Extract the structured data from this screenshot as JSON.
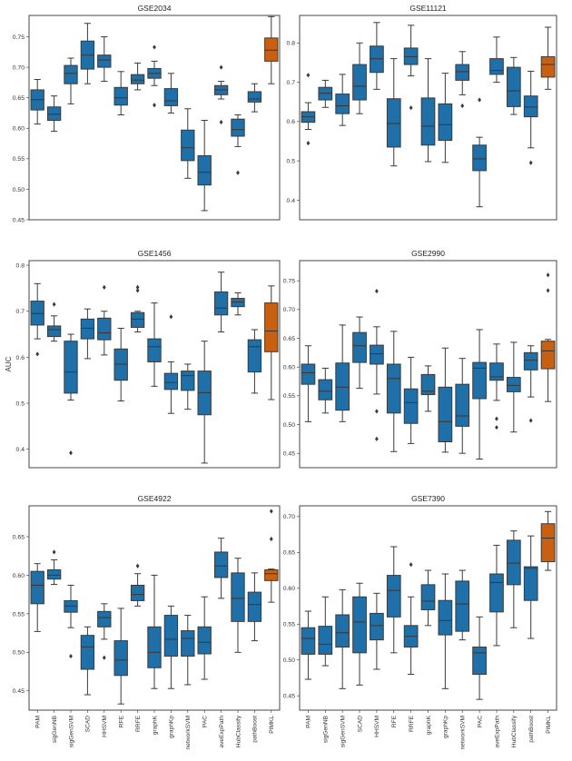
{
  "colors": {
    "box": "#1f6fa8",
    "highlight": "#c9600f",
    "line": "#3a3a3a",
    "frame": "#333333"
  },
  "shared": {
    "ylabel": "AUC",
    "categories": [
      "PAM",
      "sigGenNB",
      "sigGenSVM",
      "SCAD",
      "HHSVM",
      "RFE",
      "RRFE",
      "graphK",
      "graphKp",
      "networkSVM",
      "PAC",
      "aveExpPath",
      "HubClassify",
      "pathBoost",
      "PIMKL"
    ]
  },
  "chart_data": [
    {
      "type": "box",
      "title": "GSE2034",
      "ylim": [
        0.45,
        0.785
      ],
      "yticks": [
        "0.45",
        "0.50",
        "0.55",
        "0.60",
        "0.65",
        "0.70",
        "0.75"
      ],
      "boxes": [
        {
          "q1": 0.63,
          "med": 0.647,
          "q3": 0.663,
          "wlo": 0.607,
          "whi": 0.68,
          "fliers": []
        },
        {
          "q1": 0.613,
          "med": 0.623,
          "q3": 0.635,
          "wlo": 0.595,
          "whi": 0.653,
          "fliers": []
        },
        {
          "q1": 0.673,
          "med": 0.69,
          "q3": 0.703,
          "wlo": 0.64,
          "whi": 0.715,
          "fliers": []
        },
        {
          "q1": 0.697,
          "med": 0.72,
          "q3": 0.743,
          "wlo": 0.673,
          "whi": 0.772,
          "fliers": []
        },
        {
          "q1": 0.7,
          "med": 0.712,
          "q3": 0.72,
          "wlo": 0.677,
          "whi": 0.75,
          "fliers": []
        },
        {
          "q1": 0.638,
          "med": 0.65,
          "q3": 0.667,
          "wlo": 0.622,
          "whi": 0.693,
          "fliers": []
        },
        {
          "q1": 0.673,
          "med": 0.679,
          "q3": 0.688,
          "wlo": 0.663,
          "whi": 0.707,
          "fliers": []
        },
        {
          "q1": 0.682,
          "med": 0.69,
          "q3": 0.698,
          "wlo": 0.67,
          "whi": 0.71,
          "fliers": [
            0.733,
            0.638
          ]
        },
        {
          "q1": 0.637,
          "med": 0.645,
          "q3": 0.665,
          "wlo": 0.625,
          "whi": 0.69,
          "fliers": []
        },
        {
          "q1": 0.547,
          "med": 0.568,
          "q3": 0.597,
          "wlo": 0.518,
          "whi": 0.632,
          "fliers": []
        },
        {
          "q1": 0.507,
          "med": 0.528,
          "q3": 0.555,
          "wlo": 0.465,
          "whi": 0.613,
          "fliers": []
        },
        {
          "q1": 0.655,
          "med": 0.663,
          "q3": 0.67,
          "wlo": 0.648,
          "whi": 0.677,
          "fliers": [
            0.7,
            0.61
          ]
        },
        {
          "q1": 0.587,
          "med": 0.598,
          "q3": 0.615,
          "wlo": 0.57,
          "whi": 0.622,
          "fliers": [
            0.527
          ]
        },
        {
          "q1": 0.643,
          "med": 0.648,
          "q3": 0.66,
          "wlo": 0.627,
          "whi": 0.673,
          "fliers": []
        },
        {
          "q1": 0.71,
          "med": 0.728,
          "q3": 0.748,
          "wlo": 0.673,
          "whi": 0.783,
          "fliers": [],
          "highlight": true
        }
      ]
    },
    {
      "type": "box",
      "title": "GSE11121",
      "ylim": [
        0.35,
        0.87
      ],
      "yticks": [
        "0.4",
        "0.5",
        "0.6",
        "0.7",
        "0.8"
      ],
      "boxes": [
        {
          "q1": 0.598,
          "med": 0.612,
          "q3": 0.625,
          "wlo": 0.58,
          "whi": 0.648,
          "fliers": [
            0.718,
            0.545
          ]
        },
        {
          "q1": 0.655,
          "med": 0.672,
          "q3": 0.687,
          "wlo": 0.636,
          "whi": 0.705,
          "fliers": []
        },
        {
          "q1": 0.62,
          "med": 0.64,
          "q3": 0.67,
          "wlo": 0.59,
          "whi": 0.72,
          "fliers": []
        },
        {
          "q1": 0.655,
          "med": 0.69,
          "q3": 0.745,
          "wlo": 0.62,
          "whi": 0.8,
          "fliers": []
        },
        {
          "q1": 0.725,
          "med": 0.76,
          "q3": 0.792,
          "wlo": 0.682,
          "whi": 0.852,
          "fliers": []
        },
        {
          "q1": 0.535,
          "med": 0.595,
          "q3": 0.658,
          "wlo": 0.487,
          "whi": 0.76,
          "fliers": []
        },
        {
          "q1": 0.745,
          "med": 0.765,
          "q3": 0.787,
          "wlo": 0.716,
          "whi": 0.845,
          "fliers": [
            0.635
          ]
        },
        {
          "q1": 0.54,
          "med": 0.588,
          "q3": 0.66,
          "wlo": 0.498,
          "whi": 0.76,
          "fliers": []
        },
        {
          "q1": 0.552,
          "med": 0.592,
          "q3": 0.645,
          "wlo": 0.496,
          "whi": 0.723,
          "fliers": []
        },
        {
          "q1": 0.705,
          "med": 0.727,
          "q3": 0.745,
          "wlo": 0.668,
          "whi": 0.778,
          "fliers": [
            0.64
          ]
        },
        {
          "q1": 0.475,
          "med": 0.505,
          "q3": 0.54,
          "wlo": 0.383,
          "whi": 0.56,
          "fliers": [
            0.655
          ]
        },
        {
          "q1": 0.72,
          "med": 0.73,
          "q3": 0.76,
          "wlo": 0.7,
          "whi": 0.815,
          "fliers": []
        },
        {
          "q1": 0.638,
          "med": 0.678,
          "q3": 0.738,
          "wlo": 0.618,
          "whi": 0.763,
          "fliers": []
        },
        {
          "q1": 0.612,
          "med": 0.637,
          "q3": 0.665,
          "wlo": 0.533,
          "whi": 0.728,
          "fliers": [
            0.495
          ]
        },
        {
          "q1": 0.713,
          "med": 0.745,
          "q3": 0.765,
          "wlo": 0.682,
          "whi": 0.84,
          "fliers": [],
          "highlight": true
        }
      ]
    },
    {
      "type": "box",
      "title": "GSE1456",
      "ylim": [
        0.36,
        0.81
      ],
      "yticks": [
        "0.4",
        "0.5",
        "0.6",
        "0.7",
        "0.8"
      ],
      "boxes": [
        {
          "q1": 0.67,
          "med": 0.695,
          "q3": 0.722,
          "wlo": 0.64,
          "whi": 0.76,
          "fliers": [
            0.607
          ]
        },
        {
          "q1": 0.645,
          "med": 0.66,
          "q3": 0.668,
          "wlo": 0.635,
          "whi": 0.69,
          "fliers": [
            0.715
          ]
        },
        {
          "q1": 0.522,
          "med": 0.568,
          "q3": 0.635,
          "wlo": 0.507,
          "whi": 0.65,
          "fliers": [
            0.392
          ]
        },
        {
          "q1": 0.64,
          "med": 0.663,
          "q3": 0.683,
          "wlo": 0.597,
          "whi": 0.705,
          "fliers": []
        },
        {
          "q1": 0.638,
          "med": 0.653,
          "q3": 0.685,
          "wlo": 0.605,
          "whi": 0.7,
          "fliers": [
            0.752
          ]
        },
        {
          "q1": 0.55,
          "med": 0.585,
          "q3": 0.618,
          "wlo": 0.505,
          "whi": 0.663,
          "fliers": []
        },
        {
          "q1": 0.665,
          "med": 0.683,
          "q3": 0.697,
          "wlo": 0.655,
          "whi": 0.7,
          "fliers": [
            0.752,
            0.745
          ]
        },
        {
          "q1": 0.59,
          "med": 0.623,
          "q3": 0.64,
          "wlo": 0.537,
          "whi": 0.718,
          "fliers": []
        },
        {
          "q1": 0.53,
          "med": 0.545,
          "q3": 0.565,
          "wlo": 0.478,
          "whi": 0.59,
          "fliers": [
            0.688
          ]
        },
        {
          "q1": 0.528,
          "med": 0.56,
          "q3": 0.57,
          "wlo": 0.487,
          "whi": 0.585,
          "fliers": []
        },
        {
          "q1": 0.475,
          "med": 0.523,
          "q3": 0.57,
          "wlo": 0.37,
          "whi": 0.635,
          "fliers": []
        },
        {
          "q1": 0.692,
          "med": 0.707,
          "q3": 0.742,
          "wlo": 0.655,
          "whi": 0.785,
          "fliers": []
        },
        {
          "q1": 0.71,
          "med": 0.72,
          "q3": 0.728,
          "wlo": 0.692,
          "whi": 0.74,
          "fliers": []
        },
        {
          "q1": 0.568,
          "med": 0.623,
          "q3": 0.638,
          "wlo": 0.522,
          "whi": 0.66,
          "fliers": []
        },
        {
          "q1": 0.612,
          "med": 0.657,
          "q3": 0.718,
          "wlo": 0.508,
          "whi": 0.755,
          "fliers": [],
          "highlight": true
        }
      ]
    },
    {
      "type": "box",
      "title": "GSE2990",
      "ylim": [
        0.425,
        0.785
      ],
      "yticks": [
        "0.45",
        "0.50",
        "0.55",
        "0.60",
        "0.65",
        "0.70",
        "0.75"
      ],
      "boxes": [
        {
          "q1": 0.57,
          "med": 0.59,
          "q3": 0.605,
          "wlo": 0.505,
          "whi": 0.637,
          "fliers": []
        },
        {
          "q1": 0.543,
          "med": 0.558,
          "q3": 0.578,
          "wlo": 0.52,
          "whi": 0.598,
          "fliers": []
        },
        {
          "q1": 0.525,
          "med": 0.565,
          "q3": 0.607,
          "wlo": 0.505,
          "whi": 0.673,
          "fliers": []
        },
        {
          "q1": 0.608,
          "med": 0.637,
          "q3": 0.66,
          "wlo": 0.563,
          "whi": 0.687,
          "fliers": []
        },
        {
          "q1": 0.605,
          "med": 0.623,
          "q3": 0.638,
          "wlo": 0.553,
          "whi": 0.67,
          "fliers": [
            0.732,
            0.523,
            0.475
          ]
        },
        {
          "q1": 0.52,
          "med": 0.58,
          "q3": 0.605,
          "wlo": 0.453,
          "whi": 0.662,
          "fliers": []
        },
        {
          "q1": 0.502,
          "med": 0.538,
          "q3": 0.562,
          "wlo": 0.467,
          "whi": 0.617,
          "fliers": []
        },
        {
          "q1": 0.552,
          "med": 0.558,
          "q3": 0.587,
          "wlo": 0.523,
          "whi": 0.602,
          "fliers": []
        },
        {
          "q1": 0.47,
          "med": 0.505,
          "q3": 0.565,
          "wlo": 0.452,
          "whi": 0.633,
          "fliers": []
        },
        {
          "q1": 0.497,
          "med": 0.515,
          "q3": 0.57,
          "wlo": 0.45,
          "whi": 0.615,
          "fliers": []
        },
        {
          "q1": 0.545,
          "med": 0.598,
          "q3": 0.608,
          "wlo": 0.44,
          "whi": 0.665,
          "fliers": []
        },
        {
          "q1": 0.577,
          "med": 0.583,
          "q3": 0.607,
          "wlo": 0.542,
          "whi": 0.64,
          "fliers": [
            0.51,
            0.495
          ]
        },
        {
          "q1": 0.557,
          "med": 0.568,
          "q3": 0.582,
          "wlo": 0.487,
          "whi": 0.643,
          "fliers": []
        },
        {
          "q1": 0.595,
          "med": 0.612,
          "q3": 0.625,
          "wlo": 0.548,
          "whi": 0.637,
          "fliers": [
            0.507
          ]
        },
        {
          "q1": 0.597,
          "med": 0.628,
          "q3": 0.645,
          "wlo": 0.54,
          "whi": 0.648,
          "fliers": [
            0.76,
            0.733
          ],
          "highlight": true
        }
      ]
    },
    {
      "type": "box",
      "title": "GSE4922",
      "ylim": [
        0.425,
        0.69
      ],
      "yticks": [
        "0.45",
        "0.50",
        "0.55",
        "0.60",
        "0.65"
      ],
      "boxes": [
        {
          "q1": 0.563,
          "med": 0.587,
          "q3": 0.605,
          "wlo": 0.527,
          "whi": 0.615,
          "fliers": []
        },
        {
          "q1": 0.595,
          "med": 0.6,
          "q3": 0.607,
          "wlo": 0.588,
          "whi": 0.62,
          "fliers": [
            0.63
          ]
        },
        {
          "q1": 0.552,
          "med": 0.56,
          "q3": 0.567,
          "wlo": 0.532,
          "whi": 0.587,
          "fliers": [
            0.495
          ]
        },
        {
          "q1": 0.478,
          "med": 0.507,
          "q3": 0.522,
          "wlo": 0.445,
          "whi": 0.533,
          "fliers": []
        },
        {
          "q1": 0.533,
          "med": 0.545,
          "q3": 0.553,
          "wlo": 0.517,
          "whi": 0.563,
          "fliers": [
            0.493
          ]
        },
        {
          "q1": 0.47,
          "med": 0.49,
          "q3": 0.515,
          "wlo": 0.433,
          "whi": 0.557,
          "fliers": []
        },
        {
          "q1": 0.567,
          "med": 0.575,
          "q3": 0.587,
          "wlo": 0.56,
          "whi": 0.602,
          "fliers": [
            0.612
          ]
        },
        {
          "q1": 0.48,
          "med": 0.5,
          "q3": 0.533,
          "wlo": 0.453,
          "whi": 0.6,
          "fliers": []
        },
        {
          "q1": 0.495,
          "med": 0.517,
          "q3": 0.548,
          "wlo": 0.453,
          "whi": 0.56,
          "fliers": []
        },
        {
          "q1": 0.495,
          "med": 0.518,
          "q3": 0.528,
          "wlo": 0.458,
          "whi": 0.548,
          "fliers": []
        },
        {
          "q1": 0.498,
          "med": 0.513,
          "q3": 0.533,
          "wlo": 0.465,
          "whi": 0.572,
          "fliers": []
        },
        {
          "q1": 0.597,
          "med": 0.612,
          "q3": 0.63,
          "wlo": 0.57,
          "whi": 0.648,
          "fliers": []
        },
        {
          "q1": 0.54,
          "med": 0.57,
          "q3": 0.603,
          "wlo": 0.5,
          "whi": 0.622,
          "fliers": []
        },
        {
          "q1": 0.54,
          "med": 0.562,
          "q3": 0.578,
          "wlo": 0.515,
          "whi": 0.603,
          "fliers": []
        },
        {
          "q1": 0.593,
          "med": 0.602,
          "q3": 0.607,
          "wlo": 0.565,
          "whi": 0.608,
          "fliers": [
            0.683,
            0.647
          ],
          "highlight": true
        }
      ]
    },
    {
      "type": "box",
      "title": "GSE7390",
      "ylim": [
        0.43,
        0.715
      ],
      "yticks": [
        "0.45",
        "0.50",
        "0.55",
        "0.60",
        "0.65",
        "0.70"
      ],
      "boxes": [
        {
          "q1": 0.508,
          "med": 0.53,
          "q3": 0.545,
          "wlo": 0.473,
          "whi": 0.568,
          "fliers": []
        },
        {
          "q1": 0.508,
          "med": 0.522,
          "q3": 0.547,
          "wlo": 0.492,
          "whi": 0.588,
          "fliers": []
        },
        {
          "q1": 0.518,
          "med": 0.538,
          "q3": 0.563,
          "wlo": 0.46,
          "whi": 0.598,
          "fliers": []
        },
        {
          "q1": 0.51,
          "med": 0.553,
          "q3": 0.588,
          "wlo": 0.465,
          "whi": 0.607,
          "fliers": []
        },
        {
          "q1": 0.528,
          "med": 0.548,
          "q3": 0.565,
          "wlo": 0.487,
          "whi": 0.593,
          "fliers": []
        },
        {
          "q1": 0.56,
          "med": 0.597,
          "q3": 0.618,
          "wlo": 0.51,
          "whi": 0.658,
          "fliers": []
        },
        {
          "q1": 0.518,
          "med": 0.533,
          "q3": 0.548,
          "wlo": 0.48,
          "whi": 0.588,
          "fliers": [
            0.633
          ]
        },
        {
          "q1": 0.57,
          "med": 0.582,
          "q3": 0.605,
          "wlo": 0.548,
          "whi": 0.625,
          "fliers": []
        },
        {
          "q1": 0.535,
          "med": 0.555,
          "q3": 0.583,
          "wlo": 0.46,
          "whi": 0.62,
          "fliers": []
        },
        {
          "q1": 0.54,
          "med": 0.578,
          "q3": 0.61,
          "wlo": 0.528,
          "whi": 0.625,
          "fliers": []
        },
        {
          "q1": 0.48,
          "med": 0.51,
          "q3": 0.518,
          "wlo": 0.445,
          "whi": 0.56,
          "fliers": []
        },
        {
          "q1": 0.567,
          "med": 0.608,
          "q3": 0.62,
          "wlo": 0.52,
          "whi": 0.66,
          "fliers": []
        },
        {
          "q1": 0.605,
          "med": 0.635,
          "q3": 0.667,
          "wlo": 0.545,
          "whi": 0.68,
          "fliers": []
        },
        {
          "q1": 0.583,
          "med": 0.628,
          "q3": 0.63,
          "wlo": 0.53,
          "whi": 0.673,
          "fliers": []
        },
        {
          "q1": 0.637,
          "med": 0.67,
          "q3": 0.69,
          "wlo": 0.625,
          "whi": 0.707,
          "fliers": [],
          "highlight": true
        }
      ]
    }
  ]
}
